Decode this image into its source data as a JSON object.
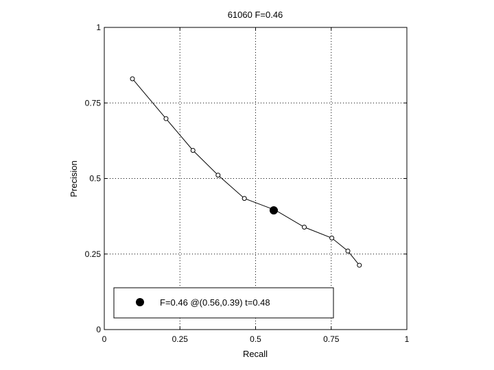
{
  "chart_data": {
    "type": "line",
    "title": "61060 F=0.46",
    "xlabel": "Recall",
    "ylabel": "Precision",
    "xlim": [
      0,
      1
    ],
    "ylim": [
      0,
      1
    ],
    "xticks": [
      0,
      0.25,
      0.5,
      0.75,
      1
    ],
    "yticks": [
      0,
      0.25,
      0.5,
      0.75,
      1
    ],
    "xtick_labels": [
      "0",
      "0.25",
      "0.5",
      "0.75",
      "1"
    ],
    "ytick_labels": [
      "0",
      "0.25",
      "0.5",
      "0.75",
      "1"
    ],
    "grid": true,
    "series": [
      {
        "x": [
          0.093,
          0.204,
          0.293,
          0.376,
          0.463,
          0.566,
          0.661,
          0.752,
          0.805,
          0.843
        ],
        "y": [
          0.83,
          0.698,
          0.593,
          0.511,
          0.434,
          0.395,
          0.339,
          0.303,
          0.26,
          0.213
        ],
        "color": "#000000",
        "marker": "open-circle"
      }
    ],
    "highlight_point": {
      "x": 0.56,
      "y": 0.39,
      "color": "#000000"
    },
    "legend": {
      "position": "bottom-left",
      "entries": [
        "F=0.46 @(0.56,0.39) t=0.48"
      ]
    }
  }
}
